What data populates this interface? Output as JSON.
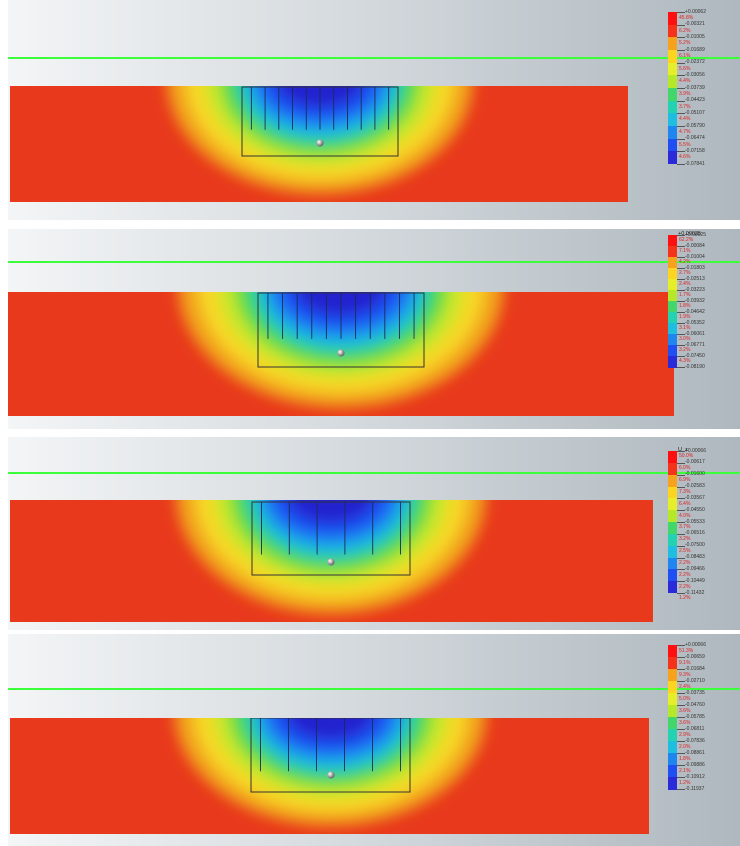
{
  "panels": [
    {
      "header": "",
      "values": [
        "+0.00062",
        "-0.00321",
        "-0.01005",
        "-0.01689",
        "-0.02372",
        "-0.03056",
        "-0.03739",
        "-0.04423",
        "-0.05107",
        "-0.05790",
        "-0.06474",
        "-0.07158",
        "-0.07841"
      ],
      "percents": [
        "45.8%",
        "6.2%",
        "5.2%",
        "6.1%",
        "5.6%",
        "4.4%",
        "3.9%",
        "3.7%",
        "4.4%",
        "4.7%",
        "5.5%",
        "4.6%"
      ]
    },
    {
      "header": "+0.00025",
      "values": [
        "+0.00025",
        "-0.00084",
        "-0.01004",
        "-0.01803",
        "-0.02513",
        "-0.03223",
        "-0.03932",
        "-0.04642",
        "-0.05352",
        "-0.06061",
        "-0.06771",
        "-0.07450",
        "-0.08190"
      ],
      "percents": [
        "62.2%",
        "7.1%",
        "4.2%",
        "2.7%",
        "2.4%",
        "1.7%",
        "1.8%",
        "1.9%",
        "3.1%",
        "3.0%",
        "3.2%",
        "4.3%"
      ]
    },
    {
      "header": "U_z",
      "values": [
        "+0.00066",
        "-0.00617",
        "-0.01600",
        "-0.02583",
        "-0.03567",
        "-0.04550",
        "-0.05533",
        "-0.06516",
        "-0.07500",
        "-0.08483",
        "-0.09466",
        "-0.10449",
        "-0.11432"
      ],
      "percents": [
        "50.0%",
        "6.0%",
        "6.9%",
        "7.3%",
        "6.4%",
        "4.0%",
        "3.7%",
        "3.2%",
        "2.5%",
        "2.2%",
        "2.2%",
        "2.2%",
        "1.2%"
      ]
    },
    {
      "header": "",
      "values": [
        "+0.00066",
        "-0.00659",
        "-0.01684",
        "-0.02710",
        "-0.03735",
        "-0.04760",
        "-0.05785",
        "-0.06811",
        "-0.07836",
        "-0.08861",
        "-0.09886",
        "-0.10912",
        "-0.11937"
      ],
      "percents": [
        "51.3%",
        "9.1%",
        "9.3%",
        "2.4%",
        "5.0%",
        "3.6%",
        "3.6%",
        "2.9%",
        "2.0%",
        "1.8%",
        "2.1%",
        "1.2%"
      ]
    }
  ],
  "legend_colors": [
    "#ff1010",
    "#f5331a",
    "#f7a21c",
    "#fdd41f",
    "#e5ee28",
    "#b6e82a",
    "#7ee03a",
    "#43d66a",
    "#22d2b0",
    "#1fbde0",
    "#1f86f0",
    "#1f4ff2",
    "#2a2ad8"
  ]
}
